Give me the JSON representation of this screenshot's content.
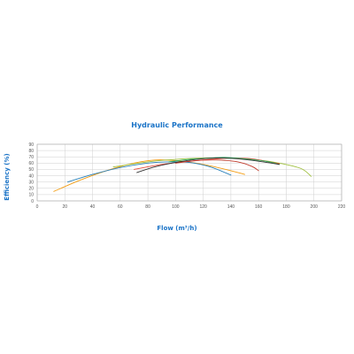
{
  "chart_data": {
    "type": "line",
    "title": "Hydraulic Performance",
    "xlabel": "Flow (m³/h)",
    "ylabel": "Efficiency (%)",
    "xlim": [
      0,
      220
    ],
    "ylim": [
      0,
      90
    ],
    "xticks": [
      "0",
      "20",
      "40",
      "60",
      "80",
      "100",
      "120",
      "140",
      "160",
      "180",
      "200",
      "220"
    ],
    "yticks": [
      "0",
      "10",
      "20",
      "30",
      "40",
      "50",
      "60",
      "70",
      "80",
      "90"
    ],
    "grid": true,
    "legend": "none",
    "series": [
      {
        "color": "#f39c12",
        "x": [
          12,
          30,
          50,
          70,
          85,
          100,
          120,
          140,
          150
        ],
        "y": [
          15,
          32,
          48,
          60,
          65,
          64,
          58,
          48,
          42
        ]
      },
      {
        "color": "#2980b9",
        "x": [
          22,
          40,
          60,
          80,
          95,
          110,
          125,
          140
        ],
        "y": [
          30,
          42,
          53,
          60,
          62,
          61,
          54,
          41
        ]
      },
      {
        "color": "#a0c040",
        "x": [
          55,
          80,
          100,
          120,
          135,
          150,
          170,
          190,
          198
        ],
        "y": [
          54,
          62,
          66,
          68,
          68,
          67,
          62,
          52,
          39
        ]
      },
      {
        "color": "#e74c3c",
        "x": [
          70,
          90,
          110,
          125,
          140,
          155,
          170,
          175
        ],
        "y": [
          50,
          58,
          63,
          66,
          68,
          67,
          61,
          59
        ]
      },
      {
        "color": "#c0392b",
        "x": [
          100,
          115,
          130,
          145,
          155,
          160
        ],
        "y": [
          60,
          64,
          65,
          62,
          55,
          48
        ]
      },
      {
        "color": "#27ae60",
        "x": [
          95,
          110,
          125,
          135,
          150,
          165,
          175
        ],
        "y": [
          62,
          66,
          68,
          69,
          67,
          63,
          58
        ]
      },
      {
        "color": "#333333",
        "x": [
          72,
          85,
          100,
          115,
          130,
          145,
          160,
          175
        ],
        "y": [
          45,
          54,
          61,
          66,
          68,
          67,
          63,
          58
        ]
      }
    ]
  }
}
